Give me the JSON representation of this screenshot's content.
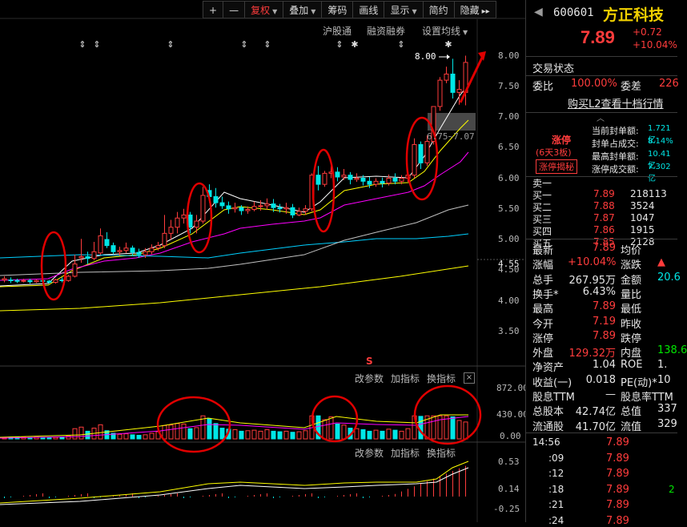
{
  "toolbar": {
    "plus": "+",
    "minus": "—",
    "items": [
      "复权",
      "叠加",
      "筹码",
      "画线",
      "显示",
      "简约",
      "隐藏"
    ],
    "more": "▸▸"
  },
  "chart_menu": [
    "沪股通",
    "融资融券",
    "设置均线"
  ],
  "price_axis": [
    "8.00",
    "7.50",
    "7.00",
    "6.50",
    "6.00",
    "5.50",
    "5.00",
    "4.55",
    "4.50",
    "4.00",
    "3.50"
  ],
  "annotations": {
    "high_label": "8.00",
    "range_label": "6.75~7.07",
    "mark_s": "S"
  },
  "volume_panel": {
    "links": [
      "改参数",
      "加指标",
      "换指标"
    ],
    "close": "×",
    "axis": [
      "872.00",
      "430.00",
      "0.00"
    ]
  },
  "macd_panel": {
    "links": [
      "改参数",
      "加指标",
      "换指标"
    ],
    "axis": [
      "0.53",
      "0.14",
      "-0.25"
    ]
  },
  "stock": {
    "code": "600601",
    "name": "方正科技",
    "price": "7.89",
    "change": "+0.72",
    "change_pct": "+10.04%"
  },
  "trade_status": {
    "label": "交易状态"
  },
  "ratio": {
    "label1": "委比",
    "value1": "100.00%",
    "label2": "委差",
    "value2": "226"
  },
  "l2_link": "购买L2查看十档行情",
  "limit_box": {
    "tag": "涨停",
    "days": "(6天3板)",
    "reveal": "涨停揭秘",
    "rows": [
      {
        "label": "当前封单额:",
        "value": "1.721亿"
      },
      {
        "label": "封单占成交:",
        "value": "8.14%"
      },
      {
        "label": "最高封单额:",
        "value": "10.41亿"
      },
      {
        "label": "涨停成交额:",
        "value": "7.302亿"
      }
    ]
  },
  "order_book": [
    {
      "label": "卖一",
      "price": "",
      "vol": ""
    },
    {
      "label": "买一",
      "price": "7.89",
      "vol": "218113"
    },
    {
      "label": "买二",
      "price": "7.88",
      "vol": "3524"
    },
    {
      "label": "买三",
      "price": "7.87",
      "vol": "1047"
    },
    {
      "label": "买四",
      "price": "7.86",
      "vol": "1915"
    },
    {
      "label": "买五",
      "price": "7.85",
      "vol": "2128"
    }
  ],
  "quote": [
    {
      "l1": "最新",
      "v1": "7.89",
      "c1": "red",
      "l2": "均价",
      "v2": "",
      "c2": "red"
    },
    {
      "l1": "涨幅",
      "v1": "+10.04%",
      "c1": "red",
      "l2": "涨跌",
      "v2": "▲",
      "c2": "red"
    },
    {
      "l1": "总手",
      "v1": "267.95万",
      "c1": "white",
      "l2": "金额",
      "v2": "20.6",
      "c2": "cyan"
    },
    {
      "l1": "换手*",
      "v1": "6.43%",
      "c1": "white",
      "l2": "量比",
      "v2": "",
      "c2": "white"
    },
    {
      "l1": "最高",
      "v1": "7.89",
      "c1": "red",
      "l2": "最低",
      "v2": "",
      "c2": "red"
    },
    {
      "l1": "今开",
      "v1": "7.19",
      "c1": "red",
      "l2": "昨收",
      "v2": "",
      "c2": "white"
    },
    {
      "l1": "涨停",
      "v1": "7.89",
      "c1": "red",
      "l2": "跌停",
      "v2": "",
      "c2": "green"
    },
    {
      "l1": "外盘",
      "v1": "129.32万",
      "c1": "red",
      "l2": "内盘",
      "v2": "138.6",
      "c2": "green"
    },
    {
      "l1": "净资产",
      "v1": "1.04",
      "c1": "white",
      "l2": "ROE",
      "v2": "1.",
      "c2": "white"
    },
    {
      "l1": "收益(一)",
      "v1": "0.018",
      "c1": "white",
      "l2": "PE(动)*",
      "v2": "10",
      "c2": "white"
    },
    {
      "l1": "股息TTM",
      "v1": "—",
      "c1": "white",
      "l2": "股息率TTM",
      "v2": "",
      "c2": "white"
    },
    {
      "l1": "总股本",
      "v1": "42.74亿",
      "c1": "white",
      "l2": "总值",
      "v2": "337",
      "c2": "white"
    },
    {
      "l1": "流通股",
      "v1": "41.70亿",
      "c1": "white",
      "l2": "流值",
      "v2": "329",
      "c2": "white"
    }
  ],
  "ticks": [
    {
      "time": "14:56",
      "price": "7.89",
      "extra": ""
    },
    {
      "time": ":09",
      "price": "7.89",
      "extra": ""
    },
    {
      "time": ":12",
      "price": "7.89",
      "extra": ""
    },
    {
      "time": ":18",
      "price": "7.89",
      "extra": "2"
    },
    {
      "time": ":21",
      "price": "7.89",
      "extra": ""
    },
    {
      "time": ":24",
      "price": "7.89",
      "extra": ""
    }
  ],
  "colors": {
    "up": "#ff3c3c",
    "down": "#00e6e6",
    "ma5": "#ffffff",
    "ma10": "#ffff00",
    "ma20": "#ff00ff",
    "ma60": "#00ff00",
    "highlight": "#e00000"
  }
}
